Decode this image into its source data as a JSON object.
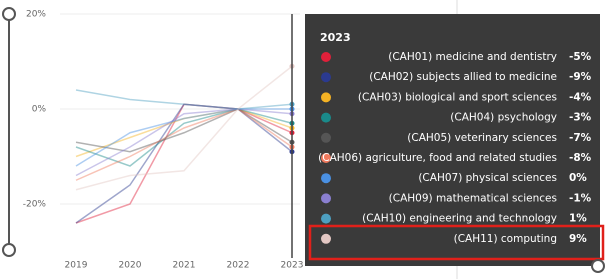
{
  "chart_data": {
    "type": "line",
    "categories": [
      "2019",
      "2020",
      "2021",
      "2022",
      "2023"
    ],
    "ylim": [
      -29,
      20
    ],
    "yticks": [
      {
        "value": -20,
        "label": "-20%"
      },
      {
        "value": 0,
        "label": "0%"
      },
      {
        "value": 20,
        "label": "20%"
      }
    ],
    "series": [
      {
        "name": "(CAH01) medicine and dentistry",
        "color": "#e0203a",
        "values": [
          -24,
          -20,
          1,
          0,
          -5
        ],
        "value_labels": [
          null,
          null,
          null,
          null,
          "-5%"
        ]
      },
      {
        "name": "(CAH02) subjects allied to medicine",
        "color": "#2b3a8f",
        "values": [
          -24,
          -16,
          1,
          0,
          -9
        ],
        "value_labels": [
          null,
          null,
          null,
          null,
          "-9%"
        ]
      },
      {
        "name": "(CAH03) biological and sport sciences",
        "color": "#f5b324",
        "values": [
          -10,
          -6,
          -2,
          0,
          -4
        ],
        "value_labels": [
          null,
          null,
          null,
          null,
          "-4%"
        ]
      },
      {
        "name": "(CAH04) psychology",
        "color": "#1a8a8a",
        "values": [
          -8,
          -12,
          -3,
          0,
          -3
        ],
        "value_labels": [
          null,
          null,
          null,
          null,
          "-3%"
        ]
      },
      {
        "name": "(CAH05) veterinary sciences",
        "color": "#555555",
        "values": [
          -7,
          -9,
          -5,
          0,
          -7
        ],
        "value_labels": [
          null,
          null,
          null,
          null,
          "-7%"
        ]
      },
      {
        "name": "(CAH06) agriculture, food and related studies",
        "color": "#f07a5e",
        "values": [
          -15,
          -10,
          -4,
          0,
          -8
        ],
        "value_labels": [
          null,
          null,
          null,
          null,
          "-8%"
        ]
      },
      {
        "name": "(CAH07) physical sciences",
        "color": "#4a90e2",
        "values": [
          -12,
          -5,
          -2,
          0,
          0
        ],
        "value_labels": [
          null,
          null,
          null,
          null,
          "0%"
        ]
      },
      {
        "name": "(CAH09) mathematical sciences",
        "color": "#8a7fd0",
        "values": [
          -14,
          -8,
          -1,
          0,
          -1
        ],
        "value_labels": [
          null,
          null,
          null,
          null,
          "-1%"
        ]
      },
      {
        "name": "(CAH10) engineering and technology",
        "color": "#4d9fc0",
        "values": [
          4,
          2,
          1,
          0,
          1
        ],
        "value_labels": [
          null,
          null,
          null,
          null,
          "1%"
        ]
      },
      {
        "name": "(CAH11) computing",
        "color": "#e3c7c3",
        "values": [
          -17,
          -14,
          -13,
          0,
          9
        ],
        "value_labels": [
          null,
          null,
          null,
          null,
          "9%"
        ]
      }
    ]
  }
}
